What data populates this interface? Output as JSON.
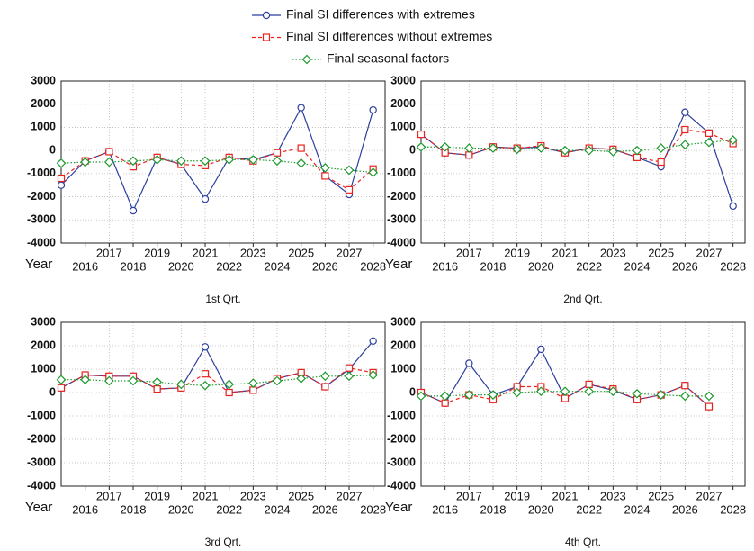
{
  "legend": [
    {
      "name": "Final SI differences with extremes",
      "color": "#2b3f9e",
      "marker": "circle",
      "dash": "solid"
    },
    {
      "name": "Final SI differences without extremes",
      "color": "#e8221f",
      "marker": "square",
      "dash": "dashed"
    },
    {
      "name": "Final seasonal factors",
      "color": "#1c9a2c",
      "marker": "diamond",
      "dash": "dotted"
    }
  ],
  "chart_data": [
    {
      "type": "line",
      "subtitle": "1st Qrt.",
      "xlabel": "Year",
      "x": [
        2015,
        2016,
        2017,
        2018,
        2019,
        2020,
        2021,
        2022,
        2023,
        2024,
        2025,
        2026,
        2027,
        2028
      ],
      "xlim": [
        2015,
        2028.5
      ],
      "xticks": [
        2016,
        2017,
        2018,
        2019,
        2020,
        2021,
        2022,
        2023,
        2024,
        2025,
        2026,
        2027,
        2028
      ],
      "ylim": [
        -4000,
        3000
      ],
      "yticks": [
        -4000,
        -3000,
        -2000,
        -1000,
        0,
        1000,
        2000,
        3000
      ],
      "grid": true,
      "series": [
        {
          "values": [
            -1500,
            -450,
            -50,
            -2600,
            -300,
            -600,
            -2100,
            -300,
            -400,
            -100,
            1850,
            -1100,
            -1900,
            1750
          ]
        },
        {
          "values": [
            -1200,
            -450,
            -50,
            -700,
            -300,
            -600,
            -650,
            -300,
            -450,
            -100,
            100,
            -1100,
            -1700,
            -800
          ]
        },
        {
          "values": [
            -550,
            -500,
            -500,
            -450,
            -400,
            -450,
            -450,
            -400,
            -400,
            -450,
            -550,
            -750,
            -850,
            -950
          ]
        }
      ]
    },
    {
      "type": "line",
      "subtitle": "2nd Qrt.",
      "xlabel": "Year",
      "x": [
        2015,
        2016,
        2017,
        2018,
        2019,
        2020,
        2021,
        2022,
        2023,
        2024,
        2025,
        2026,
        2027,
        2028
      ],
      "xlim": [
        2015,
        2028.5
      ],
      "xticks": [
        2016,
        2017,
        2018,
        2019,
        2020,
        2021,
        2022,
        2023,
        2024,
        2025,
        2026,
        2027,
        2028
      ],
      "ylim": [
        -4000,
        3000
      ],
      "yticks": [
        -4000,
        -3000,
        -2000,
        -1000,
        0,
        1000,
        2000,
        3000
      ],
      "grid": true,
      "series": [
        {
          "values": [
            700,
            -100,
            -200,
            150,
            100,
            150,
            -100,
            100,
            50,
            -300,
            -700,
            1650,
            750,
            -2400
          ]
        },
        {
          "values": [
            700,
            -100,
            -200,
            150,
            100,
            200,
            -100,
            100,
            50,
            -300,
            -500,
            900,
            750,
            300
          ]
        },
        {
          "values": [
            150,
            150,
            100,
            100,
            50,
            100,
            0,
            0,
            -50,
            0,
            100,
            250,
            350,
            450
          ]
        }
      ]
    },
    {
      "type": "line",
      "subtitle": "3rd Qrt.",
      "xlabel": "Year",
      "x": [
        2015,
        2016,
        2017,
        2018,
        2019,
        2020,
        2021,
        2022,
        2023,
        2024,
        2025,
        2026,
        2027,
        2028
      ],
      "xlim": [
        2015,
        2028.5
      ],
      "xticks": [
        2016,
        2017,
        2018,
        2019,
        2020,
        2021,
        2022,
        2023,
        2024,
        2025,
        2026,
        2027,
        2028
      ],
      "ylim": [
        -4000,
        3000
      ],
      "yticks": [
        -4000,
        -3000,
        -2000,
        -1000,
        0,
        1000,
        2000,
        3000
      ],
      "grid": true,
      "series": [
        {
          "values": [
            200,
            750,
            700,
            700,
            150,
            200,
            1950,
            0,
            100,
            600,
            850,
            250,
            1000,
            2200
          ]
        },
        {
          "values": [
            200,
            750,
            700,
            700,
            150,
            200,
            800,
            0,
            100,
            600,
            850,
            250,
            1050,
            850
          ]
        },
        {
          "values": [
            550,
            550,
            500,
            500,
            450,
            350,
            300,
            350,
            400,
            500,
            600,
            700,
            700,
            750
          ]
        }
      ]
    },
    {
      "type": "line",
      "subtitle": "4th Qrt.",
      "xlabel": "Year",
      "x": [
        2015,
        2016,
        2017,
        2018,
        2019,
        2020,
        2021,
        2022,
        2023,
        2024,
        2025,
        2026,
        2027,
        2028
      ],
      "xlim": [
        2015,
        2028.5
      ],
      "xticks": [
        2016,
        2017,
        2018,
        2019,
        2020,
        2021,
        2022,
        2023,
        2024,
        2025,
        2026,
        2027,
        2028
      ],
      "ylim": [
        -4000,
        3000
      ],
      "yticks": [
        -4000,
        -3000,
        -2000,
        -1000,
        0,
        1000,
        2000,
        3000
      ],
      "grid": true,
      "series": [
        {
          "values": [
            0,
            -450,
            1250,
            -100,
            250,
            1850,
            -250,
            350,
            100,
            -300,
            -100,
            300,
            -600,
            null
          ]
        },
        {
          "values": [
            0,
            -450,
            -100,
            -300,
            250,
            250,
            -250,
            350,
            150,
            -300,
            -100,
            300,
            -600,
            null
          ]
        },
        {
          "values": [
            -150,
            -150,
            -100,
            -100,
            0,
            50,
            50,
            50,
            50,
            -50,
            -100,
            -150,
            -150,
            null
          ]
        }
      ]
    }
  ]
}
